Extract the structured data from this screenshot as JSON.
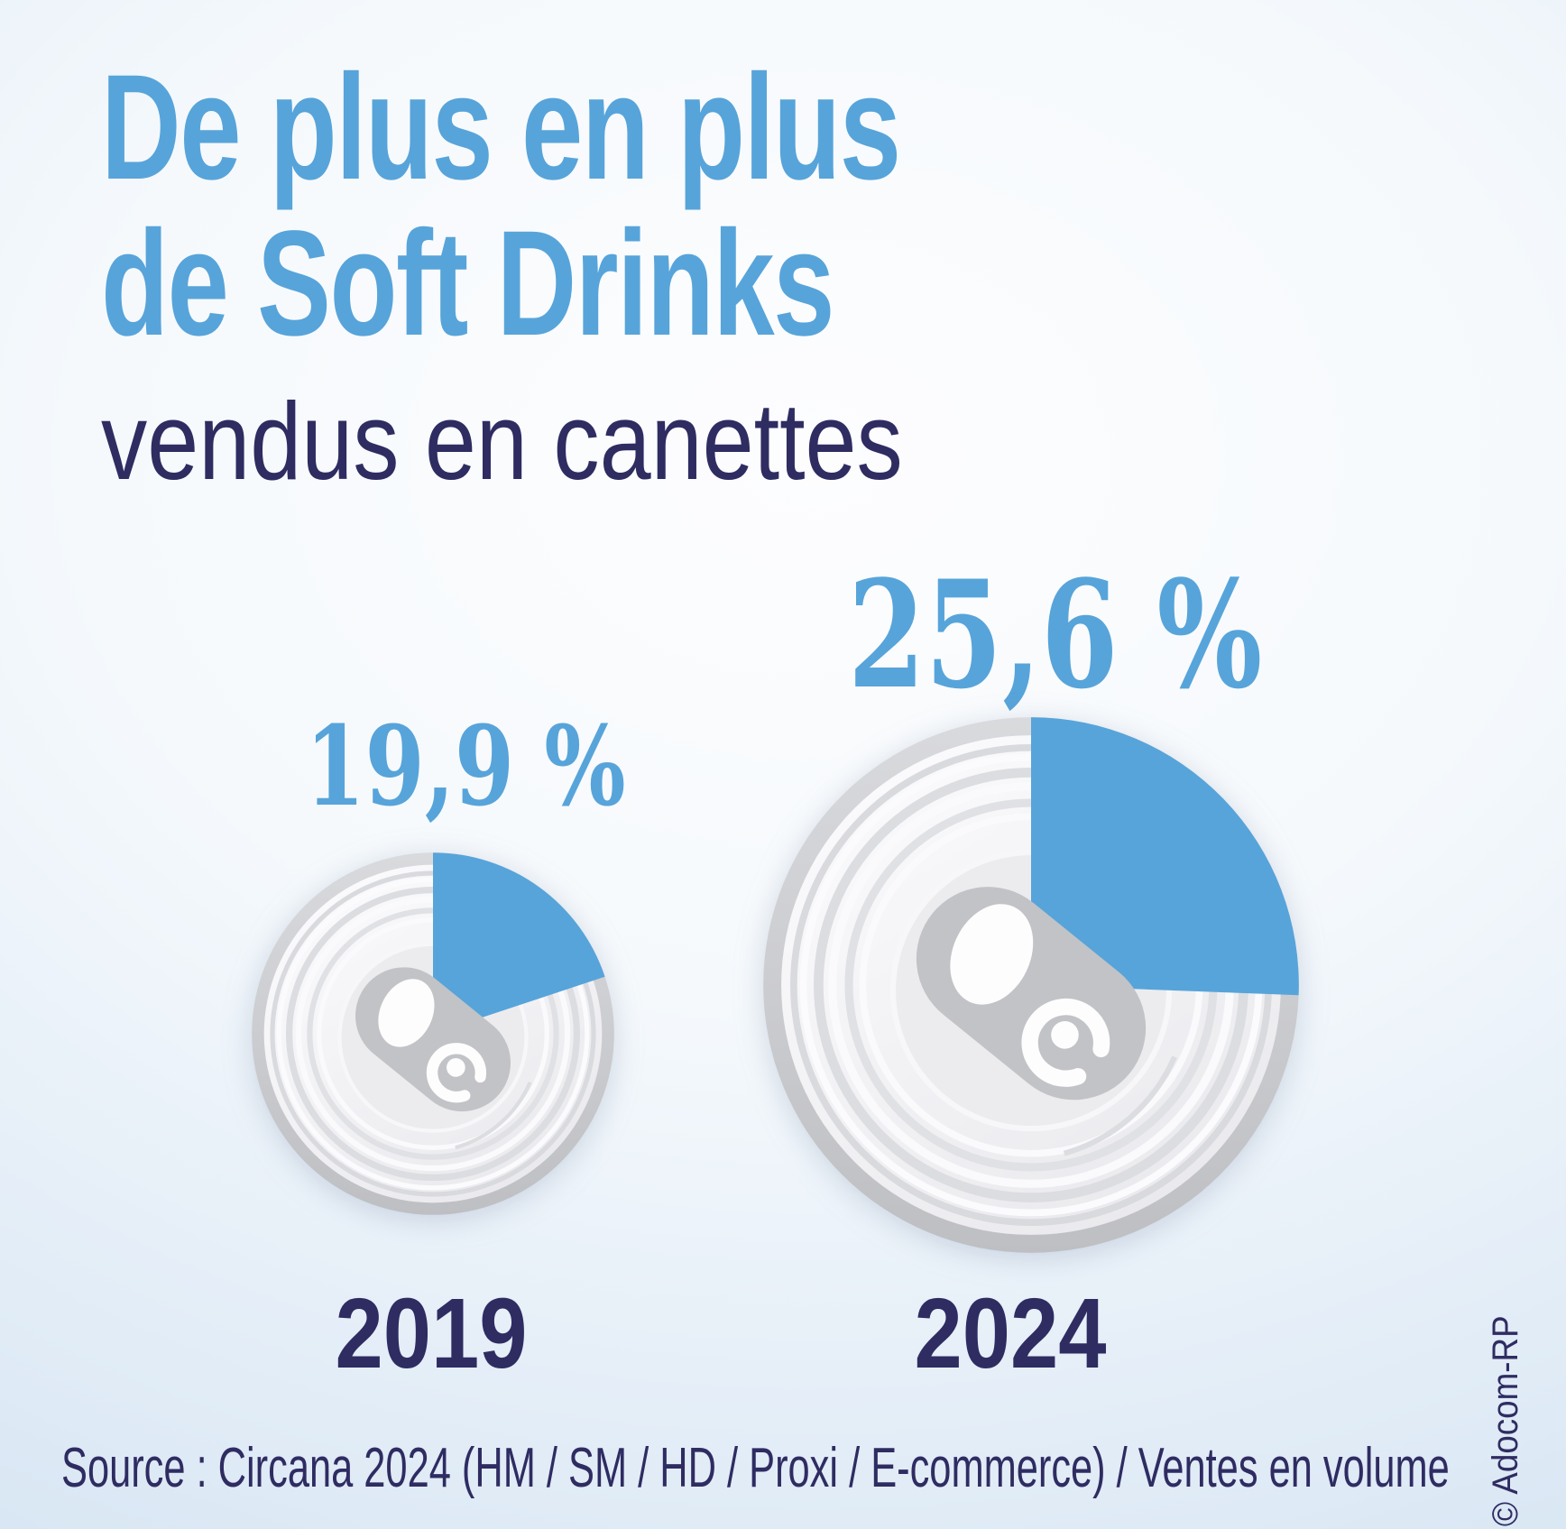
{
  "title": {
    "line1": "De plus en plus",
    "line2": "de Soft Drinks",
    "subtitle": "vendus en canettes"
  },
  "colors": {
    "accent_blue": "#57a4da",
    "navy": "#2f2c62",
    "can_rim_gray": "#c7c8cb",
    "can_face_light": "#f4f4f7",
    "pull_tab_gray": "#c2c3c6",
    "background_edge_blue": "#cfe1f1",
    "background_center": "#fdfdfe"
  },
  "chart_data": {
    "type": "pie",
    "title": "De plus en plus de Soft Drinks vendus en canettes",
    "unit": "%",
    "direction": "clockwise",
    "start_angle_deg": 0,
    "legend_position": "none",
    "categories": [
      "2019",
      "2024"
    ],
    "series": [
      {
        "label": "2019",
        "value": 19.9,
        "value_label": "19,9 %"
      },
      {
        "label": "2024",
        "value": 25.6,
        "value_label": "25,6 %"
      }
    ],
    "slice_color": "#57a4da",
    "icon": "aluminum-can-top-with-pull-tab"
  },
  "source_line": "Source : Circana 2024 (HM / SM / HD / Proxi / E-commerce) / Ventes en volume",
  "credit": "© Adocom-RP"
}
